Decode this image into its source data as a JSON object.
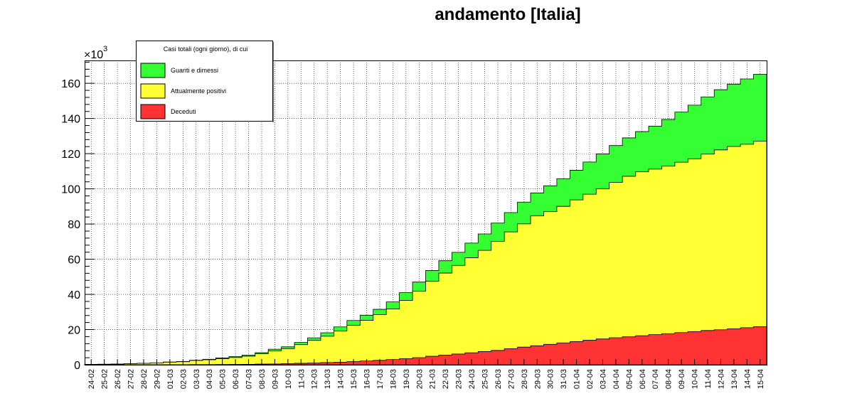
{
  "chart_data": {
    "type": "area",
    "title": "andamento [Italia]",
    "y_multiplier_base": "×10",
    "y_multiplier_exp": "3",
    "ylim": [
      0,
      173
    ],
    "yticks": [
      0,
      20,
      40,
      60,
      80,
      100,
      120,
      140,
      160
    ],
    "grid": true,
    "stacked": true,
    "categories": [
      "24-02",
      "25-02",
      "26-02",
      "27-02",
      "28-02",
      "29-02",
      "01-03",
      "02-03",
      "03-03",
      "04-03",
      "05-03",
      "06-03",
      "07-03",
      "08-03",
      "09-03",
      "10-03",
      "11-03",
      "12-03",
      "13-03",
      "14-03",
      "15-03",
      "16-03",
      "17-03",
      "18-03",
      "19-03",
      "20-03",
      "21-03",
      "22-03",
      "23-03",
      "24-03",
      "25-03",
      "26-03",
      "27-03",
      "28-03",
      "29-03",
      "30-03",
      "31-03",
      "01-04",
      "02-04",
      "03-04",
      "04-04",
      "05-04",
      "06-04",
      "07-04",
      "08-04",
      "09-04",
      "10-04",
      "11-04",
      "12-04",
      "13-04",
      "14-04",
      "15-04"
    ],
    "legend": {
      "header": "Casi totali (ogni giorno), di cui",
      "position": "top-left",
      "entries": [
        {
          "label": "Guariti e dimessi",
          "color": "#33ff33"
        },
        {
          "label": "Attualmente positivi",
          "color": "#ffff33"
        },
        {
          "label": "Deceduti",
          "color": "#ff3333"
        }
      ]
    },
    "series": [
      {
        "name": "Deceduti",
        "color": "#ff3333",
        "values": [
          0.01,
          0.01,
          0.01,
          0.02,
          0.02,
          0.03,
          0.03,
          0.05,
          0.08,
          0.11,
          0.15,
          0.2,
          0.23,
          0.37,
          0.46,
          0.63,
          0.83,
          1.02,
          1.27,
          1.44,
          1.81,
          2.16,
          2.5,
          2.98,
          3.41,
          4.03,
          4.83,
          5.48,
          6.08,
          6.82,
          7.5,
          8.17,
          9.13,
          10.02,
          10.78,
          11.59,
          12.43,
          13.16,
          13.92,
          14.68,
          15.36,
          15.89,
          16.52,
          17.13,
          17.67,
          18.28,
          18.85,
          19.47,
          19.9,
          20.47,
          21.07,
          21.65
        ]
      },
      {
        "name": "Attualmente positivi",
        "color": "#ffff33",
        "values": [
          0.21,
          0.28,
          0.37,
          0.6,
          0.79,
          1.03,
          1.46,
          1.66,
          2.34,
          2.71,
          3.3,
          3.92,
          4.64,
          5.85,
          7.38,
          8.51,
          10.59,
          12.84,
          14.96,
          17.75,
          20.6,
          23.07,
          26.06,
          28.71,
          33.19,
          37.86,
          42.68,
          46.64,
          50.42,
          54.03,
          57.52,
          62.01,
          66.41,
          70.07,
          73.88,
          75.53,
          77.63,
          80.57,
          83.05,
          85.39,
          88.27,
          91.25,
          93.19,
          94.07,
          95.26,
          96.88,
          98.27,
          100.27,
          102.25,
          103.62,
          104.29,
          105.42
        ]
      },
      {
        "name": "Guariti e dimessi",
        "color": "#33ff33",
        "values": [
          0.01,
          0.01,
          0.01,
          0.04,
          0.05,
          0.05,
          0.08,
          0.15,
          0.16,
          0.28,
          0.41,
          0.52,
          0.59,
          0.62,
          1.0,
          1.05,
          1.26,
          1.44,
          1.97,
          2.34,
          2.75,
          2.94,
          2.94,
          4.03,
          4.44,
          5.13,
          6.07,
          7.02,
          7.43,
          8.33,
          9.36,
          10.36,
          10.95,
          12.38,
          13.03,
          14.62,
          15.73,
          16.85,
          18.28,
          19.76,
          20.99,
          21.82,
          22.84,
          24.39,
          26.49,
          28.47,
          30.46,
          32.53,
          34.21,
          35.44,
          37.13,
          38.09
        ]
      }
    ]
  }
}
